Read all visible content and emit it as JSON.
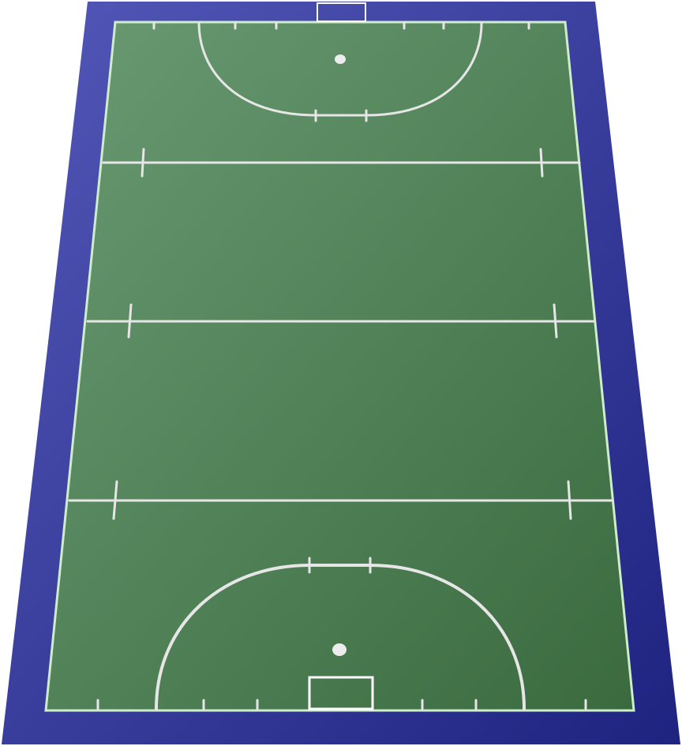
{
  "colors": {
    "surround_light": "#5358b8",
    "surround_dark": "#1f2380",
    "turf_light": "#6a9a72",
    "turf_dark": "#3a6a3e",
    "boundary_line": "#cfeccc",
    "marking_line": "#e6e6e6",
    "spot": "#ececec",
    "goal": "#ffffff"
  }
}
